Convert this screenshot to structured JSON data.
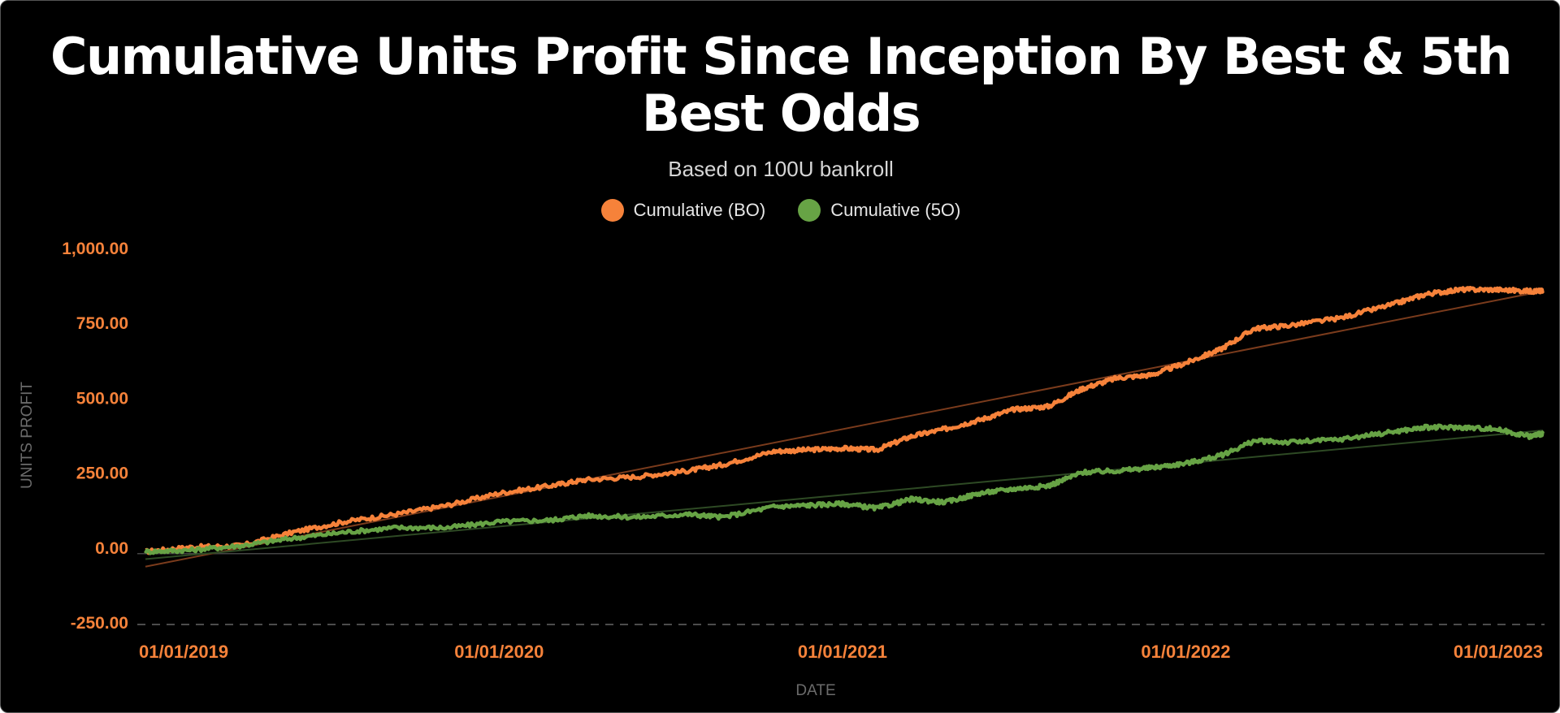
{
  "colors": {
    "background": "#000000",
    "bo": "#f6823a",
    "fo": "#67a345",
    "bo_trend": "#7a3b1c",
    "fo_trend": "#2e4a24",
    "tick": "#f6823a",
    "axis_title": "#6b6b6b",
    "zero_line": "#444444"
  },
  "chart_data": {
    "type": "line",
    "title": "Cumulative Units Profit Since Inception By Best & 5th Best Odds",
    "subtitle": "Based on 100U bankroll",
    "xlabel": "DATE",
    "ylabel": "UNITS PROFIT",
    "ylim": [
      -250,
      1000
    ],
    "yticks": [
      1000,
      750,
      500,
      250,
      0,
      -250
    ],
    "ytick_labels": [
      "1,000.00",
      "750.00",
      "500.00",
      "250.00",
      "0.00",
      "-250.00"
    ],
    "xlim": [
      2018.97,
      2023.04
    ],
    "xticks": [
      2019,
      2020,
      2021,
      2022,
      2023
    ],
    "xtick_labels": [
      "01/01/2019",
      "01/01/2020",
      "01/01/2021",
      "01/01/2022",
      "01/01/2023"
    ],
    "legend_position": "top-center",
    "series": [
      {
        "name": "Cumulative (BO)",
        "color": "#f6823a",
        "x": [
          2018.97,
          2019.1,
          2019.25,
          2019.4,
          2019.55,
          2019.7,
          2019.85,
          2020.0,
          2020.15,
          2020.25,
          2020.4,
          2020.55,
          2020.65,
          2020.8,
          2020.9,
          2021.0,
          2021.1,
          2021.2,
          2021.3,
          2021.4,
          2021.5,
          2021.6,
          2021.7,
          2021.8,
          2021.9,
          2022.0,
          2022.1,
          2022.2,
          2022.3,
          2022.45,
          2022.6,
          2022.7,
          2022.8,
          2022.9,
          2023.0,
          2023.04
        ],
        "y": [
          -15,
          0,
          5,
          50,
          85,
          110,
          140,
          180,
          205,
          225,
          235,
          255,
          275,
          320,
          325,
          330,
          325,
          370,
          395,
          425,
          460,
          470,
          530,
          565,
          575,
          615,
          660,
          730,
          740,
          765,
          810,
          845,
          860,
          860,
          855,
          855
        ]
      },
      {
        "name": "Cumulative (5O)",
        "color": "#67a345",
        "x": [
          2018.97,
          2019.1,
          2019.25,
          2019.4,
          2019.55,
          2019.7,
          2019.85,
          2020.0,
          2020.15,
          2020.25,
          2020.4,
          2020.55,
          2020.65,
          2020.8,
          2020.9,
          2021.0,
          2021.1,
          2021.2,
          2021.3,
          2021.4,
          2021.5,
          2021.6,
          2021.7,
          2021.8,
          2021.9,
          2022.0,
          2022.1,
          2022.2,
          2022.3,
          2022.45,
          2022.6,
          2022.7,
          2022.8,
          2022.9,
          2023.0,
          2023.04
        ],
        "y": [
          -15,
          -10,
          5,
          30,
          50,
          65,
          65,
          85,
          90,
          105,
          100,
          110,
          100,
          135,
          140,
          145,
          130,
          160,
          150,
          180,
          195,
          205,
          250,
          255,
          265,
          280,
          305,
          355,
          350,
          360,
          385,
          400,
          400,
          395,
          370,
          380
        ]
      }
    ],
    "trendlines": [
      {
        "series": "Cumulative (BO)",
        "start": [
          2018.97,
          -65
        ],
        "end": [
          2023.04,
          855
        ]
      },
      {
        "series": "Cumulative (5O)",
        "start": [
          2018.97,
          -40
        ],
        "end": [
          2023.04,
          390
        ]
      }
    ]
  }
}
